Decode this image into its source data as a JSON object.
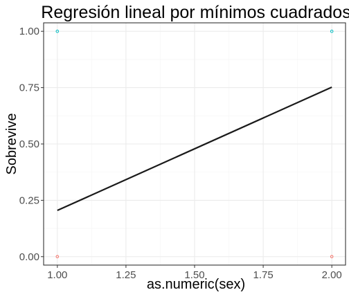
{
  "chart_data": {
    "type": "scatter",
    "title": "Regresión lineal por mínimos cuadrados",
    "xlabel": "as.numeric(sex)",
    "ylabel": "Sobrevive",
    "xlim": [
      0.95,
      2.05
    ],
    "ylim": [
      -0.0375,
      1.0375
    ],
    "x_ticks": [
      1.0,
      1.25,
      1.5,
      1.75,
      2.0
    ],
    "x_tick_labels": [
      "1.00",
      "1.25",
      "1.50",
      "1.75",
      "2.00"
    ],
    "y_ticks": [
      0.0,
      0.25,
      0.5,
      0.75,
      1.0
    ],
    "y_tick_labels": [
      "0.00",
      "0.25",
      "0.50",
      "0.75",
      "1.00"
    ],
    "grid": true,
    "legend": "none",
    "points": [
      {
        "x": 1,
        "y": 1,
        "color": "#00bfc4"
      },
      {
        "x": 2,
        "y": 1,
        "color": "#00bfc4"
      },
      {
        "x": 1,
        "y": 0,
        "color": "#f8766d"
      },
      {
        "x": 2,
        "y": 0,
        "color": "#f8766d"
      }
    ],
    "regression_line": {
      "x": [
        1,
        2
      ],
      "y": [
        0.205,
        0.752
      ],
      "color": "#1a1a1a"
    }
  }
}
